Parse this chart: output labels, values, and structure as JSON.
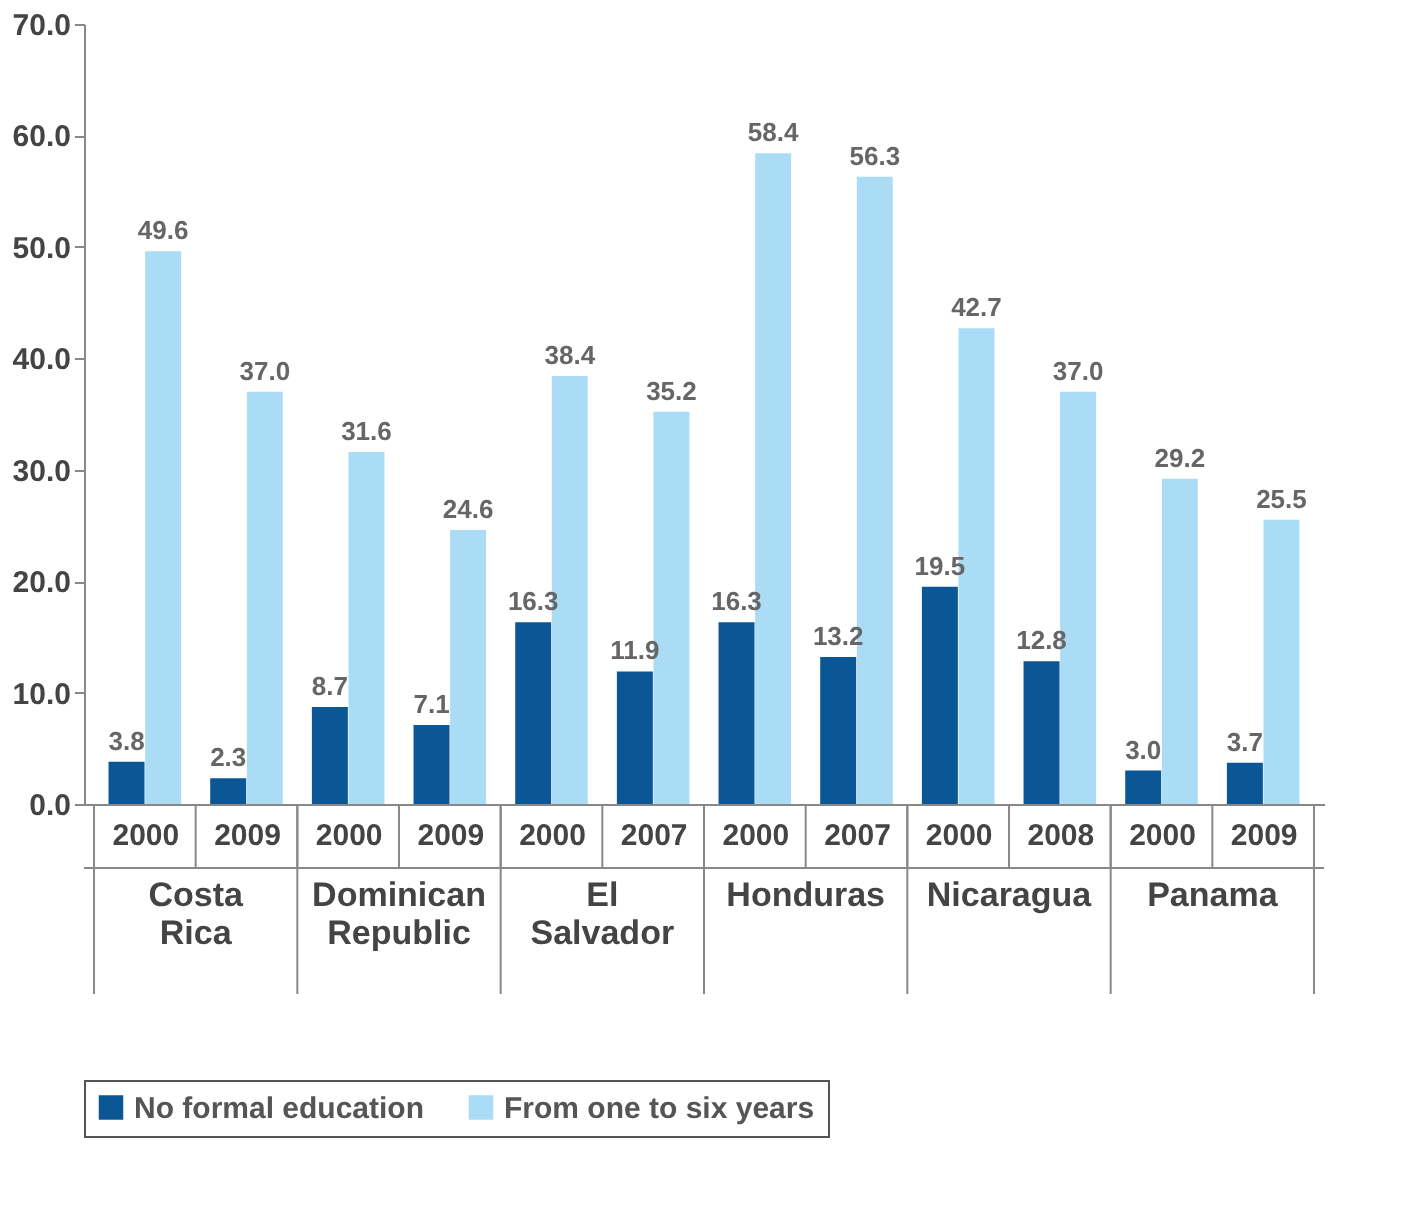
{
  "chart_data": {
    "type": "bar",
    "categories": [
      "2000",
      "2009",
      "2000",
      "2009",
      "2000",
      "2007",
      "2000",
      "2007",
      "2000",
      "2008",
      "2000",
      "2009"
    ],
    "annotations": [
      "Costa Rica",
      "Dominican Republic",
      "El Salvador",
      "Honduras",
      "Nicaragua",
      "Panama"
    ],
    "series": [
      {
        "name": "No formal education",
        "color": "#0b5796",
        "values": [
          3.8,
          2.3,
          8.7,
          7.1,
          16.3,
          11.9,
          16.3,
          13.2,
          19.5,
          12.8,
          3.0,
          3.7
        ],
        "value_labels": [
          "3.8",
          "2.3",
          "8.7",
          "7.1",
          "16.3",
          "11.9",
          "16.3",
          "13.2",
          "19.5",
          "12.8",
          "3.0",
          "3.7"
        ]
      },
      {
        "name": "From one to six years",
        "color": "#aadcf6",
        "values": [
          49.6,
          37.0,
          31.6,
          24.6,
          38.4,
          35.2,
          58.4,
          56.3,
          42.7,
          37.0,
          29.2,
          25.5
        ],
        "value_labels": [
          "49.6",
          "37.0",
          "31.6",
          "24.6",
          "38.4",
          "35.2",
          "58.4",
          "56.3",
          "42.7",
          "37.0",
          "29.2",
          "25.5"
        ]
      }
    ],
    "ylim": [
      0,
      70
    ],
    "yticks": [
      {
        "value": 0,
        "label": "0.0"
      },
      {
        "value": 10,
        "label": "10.0"
      },
      {
        "value": 20,
        "label": "20.0"
      },
      {
        "value": 30,
        "label": "30.0"
      },
      {
        "value": 40,
        "label": "40.0"
      },
      {
        "value": 50,
        "label": "50.0"
      },
      {
        "value": 60,
        "label": "60.0"
      },
      {
        "value": 70,
        "label": "70.0"
      }
    ],
    "grid": false,
    "legend": "bottom"
  }
}
